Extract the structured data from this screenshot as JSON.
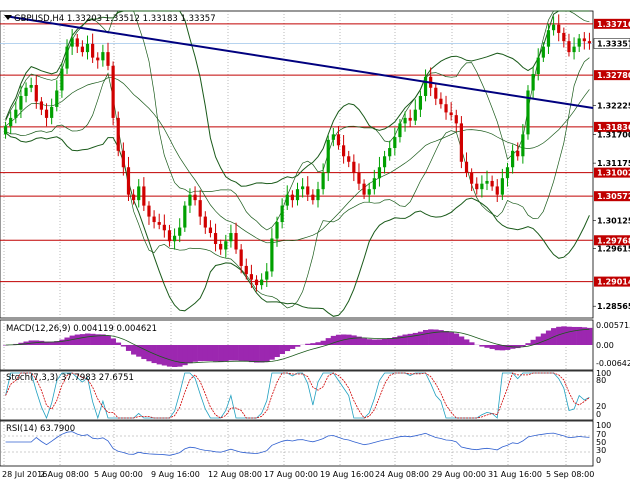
{
  "header": {
    "title": "GBPUSD,H4  1.33203 1.33512 1.33183 1.33357"
  },
  "panels": {
    "macd": {
      "label": "MACD(12,26,9) 0.004119 0.004621"
    },
    "stoch": {
      "label": "Stoch(7,3,3) 37.7983 27.6751"
    },
    "rsi": {
      "label": "RSI(14) 63.7900"
    }
  },
  "colors": {
    "bull": "#00a000",
    "bear": "#d00000",
    "level": "#c00000",
    "trend": "#00007f",
    "band": "#1a5a1a",
    "macd": "#9c27b0",
    "stoch_main": "#20a0c0",
    "stoch_signal": "#d00000",
    "rsi": "#3060d0"
  },
  "chart_data": {
    "type": "candlestick",
    "symbol": "GBPUSD",
    "timeframe": "H4",
    "ohlc_current": {
      "open": 1.33203,
      "high": 1.33512,
      "low": 1.33183,
      "close": 1.33357
    },
    "ylim": [
      1.2835,
      1.3395
    ],
    "price_ticks": [
      "1.33716",
      "1.33357",
      "1.32780",
      "1.32225",
      "1.31836",
      "1.31700",
      "1.31175",
      "1.31002",
      "1.30572",
      "1.30125",
      "1.29768",
      "1.29615",
      "1.29014",
      "1.28565"
    ],
    "x_tick_labels": [
      "28 Jul 2016",
      "2 Aug 08:00",
      "5 Aug 00:00",
      "9 Aug 16:00",
      "12 Aug 08:00",
      "17 Aug 00:00",
      "19 Aug 16:00",
      "24 Aug 08:00",
      "29 Aug 00:00",
      "31 Aug 16:00",
      "5 Sep 08:00"
    ],
    "horizontal_levels": [
      1.33716,
      1.3278,
      1.31836,
      1.31002,
      1.30572,
      1.29768,
      1.29014
    ],
    "current_price": 1.33357,
    "trendline": {
      "start": 1.3385,
      "end": 1.3218
    },
    "closes": [
      1.3185,
      1.32,
      1.3215,
      1.324,
      1.3255,
      1.326,
      1.323,
      1.3215,
      1.32,
      1.322,
      1.325,
      1.329,
      1.333,
      1.3345,
      1.333,
      1.332,
      1.3335,
      1.331,
      1.3305,
      1.332,
      1.3295,
      1.32,
      1.314,
      1.311,
      1.306,
      1.305,
      1.3075,
      1.304,
      1.302,
      1.301,
      1.3005,
      1.2995,
      1.2975,
      1.2985,
      1.3,
      1.304,
      1.306,
      1.305,
      1.302,
      1.3,
      1.299,
      1.297,
      1.296,
      1.2975,
      1.299,
      1.296,
      1.293,
      1.2915,
      1.2905,
      1.2895,
      1.2905,
      1.292,
      1.298,
      1.301,
      1.304,
      1.306,
      1.305,
      1.307,
      1.3075,
      1.306,
      1.305,
      1.307,
      1.31,
      1.316,
      1.317,
      1.315,
      1.313,
      1.312,
      1.31,
      1.308,
      1.306,
      1.307,
      1.309,
      1.311,
      1.313,
      1.3145,
      1.3165,
      1.319,
      1.32,
      1.3195,
      1.3215,
      1.324,
      1.3275,
      1.3255,
      1.3235,
      1.3225,
      1.321,
      1.3205,
      1.319,
      1.312,
      1.31,
      1.308,
      1.307,
      1.308,
      1.3085,
      1.3075,
      1.306,
      1.309,
      1.311,
      1.314,
      1.313,
      1.317,
      1.325,
      1.328,
      1.331,
      1.333,
      1.336,
      1.337,
      1.3355,
      1.334,
      1.332,
      1.333,
      1.3345,
      1.334,
      1.3336
    ]
  }
}
